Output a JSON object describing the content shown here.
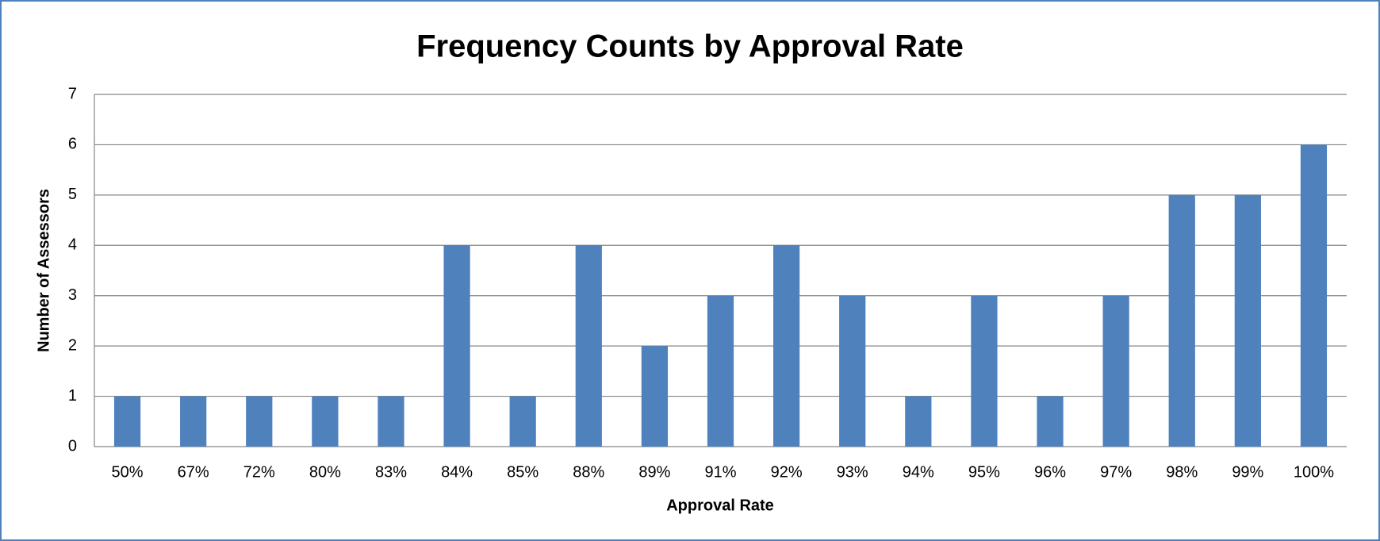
{
  "chart_data": {
    "type": "bar",
    "title": "Frequency Counts by Approval Rate",
    "x_label": "Approval Rate",
    "y_label": "Number of Assessors",
    "categories": [
      "50%",
      "67%",
      "72%",
      "80%",
      "83%",
      "84%",
      "85%",
      "88%",
      "89%",
      "91%",
      "92%",
      "93%",
      "94%",
      "95%",
      "96%",
      "97%",
      "98%",
      "99%",
      "100%"
    ],
    "values": [
      1,
      1,
      1,
      1,
      1,
      4,
      1,
      4,
      2,
      3,
      4,
      3,
      1,
      3,
      1,
      3,
      5,
      5,
      6
    ],
    "color": "#4f81bd",
    "ylim": [
      0,
      7
    ],
    "yticks": [
      0,
      1,
      2,
      3,
      4,
      5,
      6,
      7
    ],
    "grid": true
  }
}
